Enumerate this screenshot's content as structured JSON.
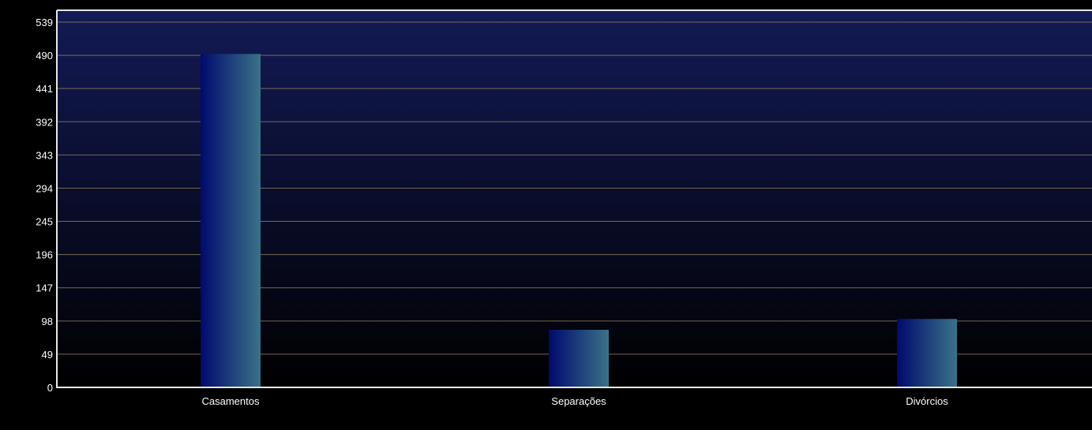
{
  "chart_data": {
    "type": "bar",
    "title": "",
    "xlabel": "",
    "ylabel": "",
    "categories": [
      "Casamentos",
      "Separações",
      "Divórcios"
    ],
    "values": [
      492,
      85,
      101
    ],
    "ylim": [
      0,
      539
    ],
    "yticks": [
      "0",
      "49",
      "98",
      "147",
      "196",
      "245",
      "294",
      "343",
      "392",
      "441",
      "490",
      "539"
    ],
    "grid": true,
    "legend": "none",
    "colors": {
      "background": "#000000",
      "plot_top": "#131a55",
      "plot_bottom": "#000000",
      "bar_left": "#000a6e",
      "bar_right": "#3a7288",
      "grid": "#8a7a5a",
      "axis": "#e8e8e8",
      "text": "#ffffff"
    }
  }
}
